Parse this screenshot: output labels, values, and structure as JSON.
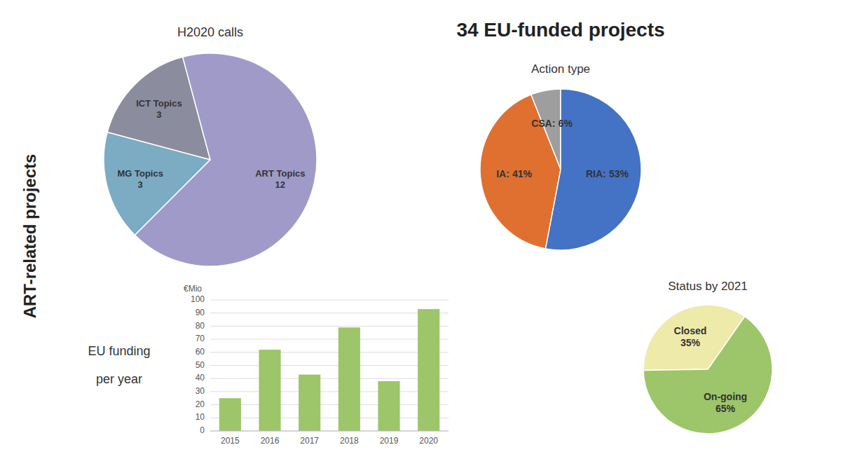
{
  "title": "34 EU-funded projects",
  "subtitle": "ART-related projects",
  "chart_data": [
    {
      "type": "pie",
      "title": "H2020 calls",
      "categories": [
        "ICT Topics",
        "MG Topics",
        "ART Topics"
      ],
      "values": [
        3,
        3,
        12
      ],
      "colors": [
        "#8b8d9e",
        "#7bacc4",
        "#a09ac8"
      ],
      "data_labels": true
    },
    {
      "type": "pie",
      "title": "Action type",
      "categories": [
        "CSA:",
        "IA:",
        "RIA:"
      ],
      "values": [
        6,
        41,
        53
      ],
      "value_labels": [
        "6%",
        "41%",
        "53%"
      ],
      "colors": [
        "#9e9e9e",
        "#e07030",
        "#4472c4"
      ],
      "data_labels": true
    },
    {
      "type": "pie",
      "title": "Status by 2021",
      "categories": [
        "Closed",
        "On-going"
      ],
      "values": [
        35,
        65
      ],
      "value_labels": [
        "35%",
        "65%"
      ],
      "colors": [
        "#eeeaaa",
        "#9dc56a"
      ],
      "data_labels": true
    },
    {
      "type": "bar",
      "title": "EU funding\n\nper year",
      "ylabel": "€Mio",
      "categories": [
        "2015",
        "2016",
        "2017",
        "2018",
        "2019",
        "2020"
      ],
      "values": [
        25,
        62,
        43,
        79,
        38,
        93
      ],
      "color": "#9dc56a",
      "ylim": [
        0,
        100
      ],
      "yticks": [
        0,
        10,
        20,
        30,
        40,
        50,
        60,
        70,
        80,
        90,
        100
      ],
      "grid": true
    }
  ]
}
